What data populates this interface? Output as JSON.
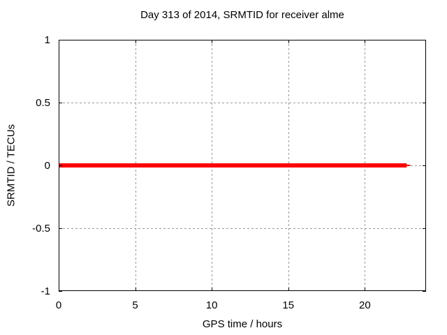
{
  "chart_data": {
    "type": "line",
    "title": "Day 313 of 2014, SRMTID for receiver alme",
    "xlabel": "GPS time / hours",
    "ylabel": "SRMTID / TECUs",
    "xlim": [
      0,
      24
    ],
    "ylim": [
      -1,
      1
    ],
    "xticks": [
      0,
      5,
      10,
      15,
      20
    ],
    "xtick_labels": [
      "0",
      "5",
      "10",
      "15",
      "20"
    ],
    "yticks": [
      -1,
      -0.5,
      0,
      0.5,
      1
    ],
    "ytick_labels": [
      "-1",
      "-0.5",
      "0",
      "0.5",
      "1"
    ],
    "grid": true,
    "grid_style": "dashed",
    "legend": "none",
    "series": [
      {
        "name": "SRMTID",
        "color": "#ff0000",
        "y_constant": 0,
        "x_start": 0,
        "x_end": 22.97,
        "segments": [
          {
            "x0": 0,
            "x1": 22.74,
            "y": 0,
            "linewidth": 6
          },
          {
            "x0": 22.74,
            "x1": 22.97,
            "y": 0,
            "linewidth": 2
          }
        ]
      }
    ],
    "colors": {
      "series": "#ff0000",
      "grid": "#999999",
      "axis": "#000000",
      "background": "#ffffff",
      "text": "#000000"
    }
  }
}
